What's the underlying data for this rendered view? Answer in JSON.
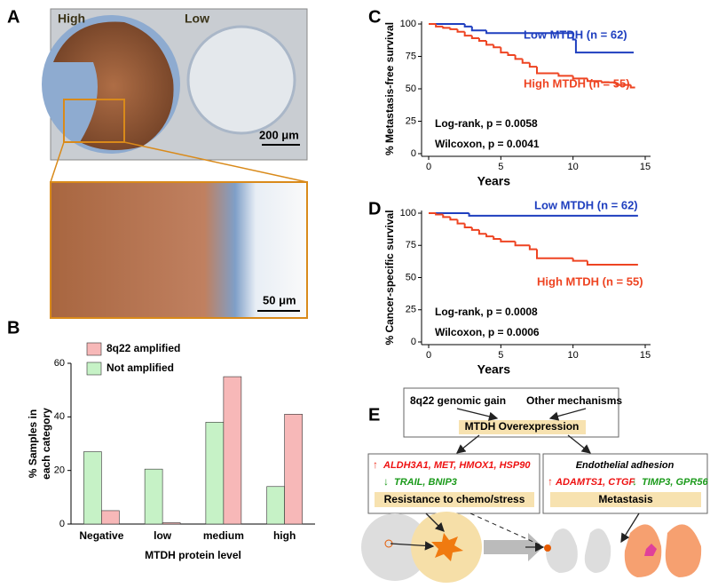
{
  "panel_a": {
    "label": "A",
    "high": "High",
    "low": "Low",
    "scale_top": "200 μm",
    "scale_zoom": "50 μm"
  },
  "panel_e": {
    "label": "E",
    "gain": "8q22 genomic gain",
    "other": "Other mechanisms",
    "overexpression": "MTDH Overexpression",
    "left_up": "ALDH3A1, MET, HMOX1, HSP90",
    "left_down": "TRAIL, BNIP3",
    "left_title": "Resistance to chemo/stress",
    "right_header": "Endothelial adhesion",
    "right_up": "ADAMTS1, CTGF",
    "right_down": "TIMP3, GPR56",
    "right_title": "Metastasis"
  },
  "chart_data": [
    {
      "type": "bar",
      "label": "B",
      "categories": [
        "Negative",
        "low",
        "medium",
        "high"
      ],
      "series": [
        {
          "name": "8q22 amplified",
          "color": "#f7b8b8",
          "values": [
            5,
            0.5,
            55,
            41
          ]
        },
        {
          "name": "Not amplified",
          "color": "#c6f2c6",
          "values": [
            27,
            20.5,
            38,
            14
          ]
        }
      ],
      "ylim": [
        0,
        60
      ],
      "yticks": [
        0,
        20,
        40,
        60
      ],
      "ylabel": [
        "% Samples in",
        "each category"
      ],
      "xlabel": "MTDH protein level"
    },
    {
      "type": "survival",
      "label": "C",
      "xlim": [
        0,
        15
      ],
      "xticks": [
        0,
        5,
        10,
        15
      ],
      "ylim": [
        0,
        100
      ],
      "yticks": [
        0,
        25,
        50,
        75,
        100
      ],
      "xlabel": "Years",
      "ylabel": "% Metastasis-free survival",
      "series": [
        {
          "name": "Low MTDH (n = 62)",
          "color": "#1f3fbf",
          "x": [
            0,
            2.5,
            3,
            4,
            10,
            10.2,
            14.2
          ],
          "values": [
            100,
            98,
            95,
            93,
            88,
            78,
            78
          ]
        },
        {
          "name": "High MTDH (n = 55)",
          "color": "#ee4422",
          "x": [
            0,
            0.5,
            1,
            1.5,
            2,
            2.5,
            3,
            3.5,
            4,
            4.5,
            5,
            5.5,
            6,
            6.5,
            7,
            7.5,
            9,
            10,
            11,
            12,
            13,
            14,
            14.3
          ],
          "values": [
            100,
            98,
            97,
            96,
            94,
            91,
            89,
            87,
            84,
            82,
            78,
            76,
            73,
            70,
            67,
            62,
            60,
            58,
            56,
            55,
            53,
            51,
            51
          ]
        }
      ],
      "annotations": [
        "Log-rank, p = 0.0058",
        "Wilcoxon, p = 0.0041"
      ]
    },
    {
      "type": "survival",
      "label": "D",
      "xlim": [
        0,
        15
      ],
      "xticks": [
        0,
        5,
        10,
        15
      ],
      "ylim": [
        0,
        100
      ],
      "yticks": [
        0,
        25,
        50,
        75,
        100
      ],
      "xlabel": "Years",
      "ylabel": "% Cancer-specific survival",
      "series": [
        {
          "name": "Low MTDH (n = 62)",
          "color": "#1f3fbf",
          "x": [
            0,
            2.8,
            14.5
          ],
          "values": [
            100,
            98,
            98
          ]
        },
        {
          "name": "High MTDH (n = 55)",
          "color": "#ee4422",
          "x": [
            0,
            0.5,
            1,
            1.5,
            2,
            2.5,
            3,
            3.5,
            4,
            4.5,
            5,
            6,
            7,
            7.5,
            10,
            11,
            14.5
          ],
          "values": [
            100,
            99,
            97,
            95,
            92,
            89,
            87,
            84,
            82,
            80,
            78,
            75,
            72,
            65,
            63,
            60,
            60
          ]
        }
      ],
      "annotations": [
        "Log-rank, p = 0.0008",
        "Wilcoxon, p = 0.0006"
      ]
    }
  ]
}
